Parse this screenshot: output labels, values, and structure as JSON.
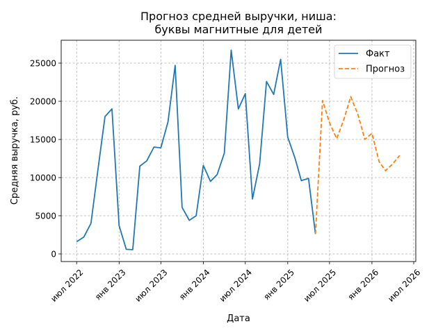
{
  "chart_data": {
    "type": "line",
    "title": "Прогноз средней выручки, ниша:\nбуквы магнитные для детей",
    "xlabel": "Дата",
    "ylabel": "Средняя выручка, руб.",
    "grid": true,
    "legend_placement": "top-right",
    "x_ticks": [
      {
        "date": "2022-07-01",
        "label": "июл 2022"
      },
      {
        "date": "2023-01-01",
        "label": "янв 2023"
      },
      {
        "date": "2023-07-01",
        "label": "июл 2023"
      },
      {
        "date": "2024-01-01",
        "label": "янв 2024"
      },
      {
        "date": "2024-07-01",
        "label": "июл 2024"
      },
      {
        "date": "2025-01-01",
        "label": "янв 2025"
      },
      {
        "date": "2025-07-01",
        "label": "июл 2025"
      },
      {
        "date": "2026-01-01",
        "label": "янв 2026"
      },
      {
        "date": "2026-07-01",
        "label": "июл 2026"
      }
    ],
    "xlim": [
      "2022-04-25",
      "2026-07-10"
    ],
    "y_ticks": [
      0,
      5000,
      10000,
      15000,
      20000,
      25000
    ],
    "ylim": [
      -1000,
      28000
    ],
    "series": [
      {
        "name": "Факт",
        "color": "#1f77b4",
        "style": "solid",
        "points": [
          [
            "2022-07-01",
            1600
          ],
          [
            "2022-08-01",
            2200
          ],
          [
            "2022-09-01",
            4000
          ],
          [
            "2022-10-01",
            11000
          ],
          [
            "2022-11-01",
            18000
          ],
          [
            "2022-12-01",
            19000
          ],
          [
            "2023-01-01",
            3700
          ],
          [
            "2023-02-01",
            600
          ],
          [
            "2023-03-01",
            550
          ],
          [
            "2023-04-01",
            11500
          ],
          [
            "2023-05-01",
            12200
          ],
          [
            "2023-06-01",
            14000
          ],
          [
            "2023-07-01",
            13900
          ],
          [
            "2023-08-01",
            17300
          ],
          [
            "2023-09-01",
            24700
          ],
          [
            "2023-10-01",
            6100
          ],
          [
            "2023-11-01",
            4400
          ],
          [
            "2023-12-01",
            5000
          ],
          [
            "2024-01-01",
            11600
          ],
          [
            "2024-02-01",
            9500
          ],
          [
            "2024-03-01",
            10400
          ],
          [
            "2024-04-01",
            13200
          ],
          [
            "2024-05-01",
            26700
          ],
          [
            "2024-06-01",
            19000
          ],
          [
            "2024-07-01",
            21000
          ],
          [
            "2024-08-01",
            7200
          ],
          [
            "2024-09-01",
            11800
          ],
          [
            "2024-10-01",
            22600
          ],
          [
            "2024-11-01",
            20900
          ],
          [
            "2024-12-01",
            25500
          ],
          [
            "2025-01-01",
            15300
          ],
          [
            "2025-02-01",
            12600
          ],
          [
            "2025-03-01",
            9600
          ],
          [
            "2025-04-01",
            9900
          ],
          [
            "2025-05-01",
            2600
          ]
        ]
      },
      {
        "name": "Прогноз",
        "color": "#ff7f0e",
        "style": "dashed",
        "points": [
          [
            "2025-05-01",
            2600
          ],
          [
            "2025-06-01",
            20100
          ],
          [
            "2025-07-01",
            17200
          ],
          [
            "2025-08-01",
            15100
          ],
          [
            "2025-09-01",
            17600
          ],
          [
            "2025-10-01",
            20600
          ],
          [
            "2025-11-01",
            18300
          ],
          [
            "2025-12-01",
            15000
          ],
          [
            "2026-01-01",
            15800
          ],
          [
            "2026-02-01",
            12100
          ],
          [
            "2026-03-01",
            10900
          ],
          [
            "2026-04-01",
            11800
          ],
          [
            "2026-05-01",
            12900
          ]
        ]
      }
    ]
  }
}
